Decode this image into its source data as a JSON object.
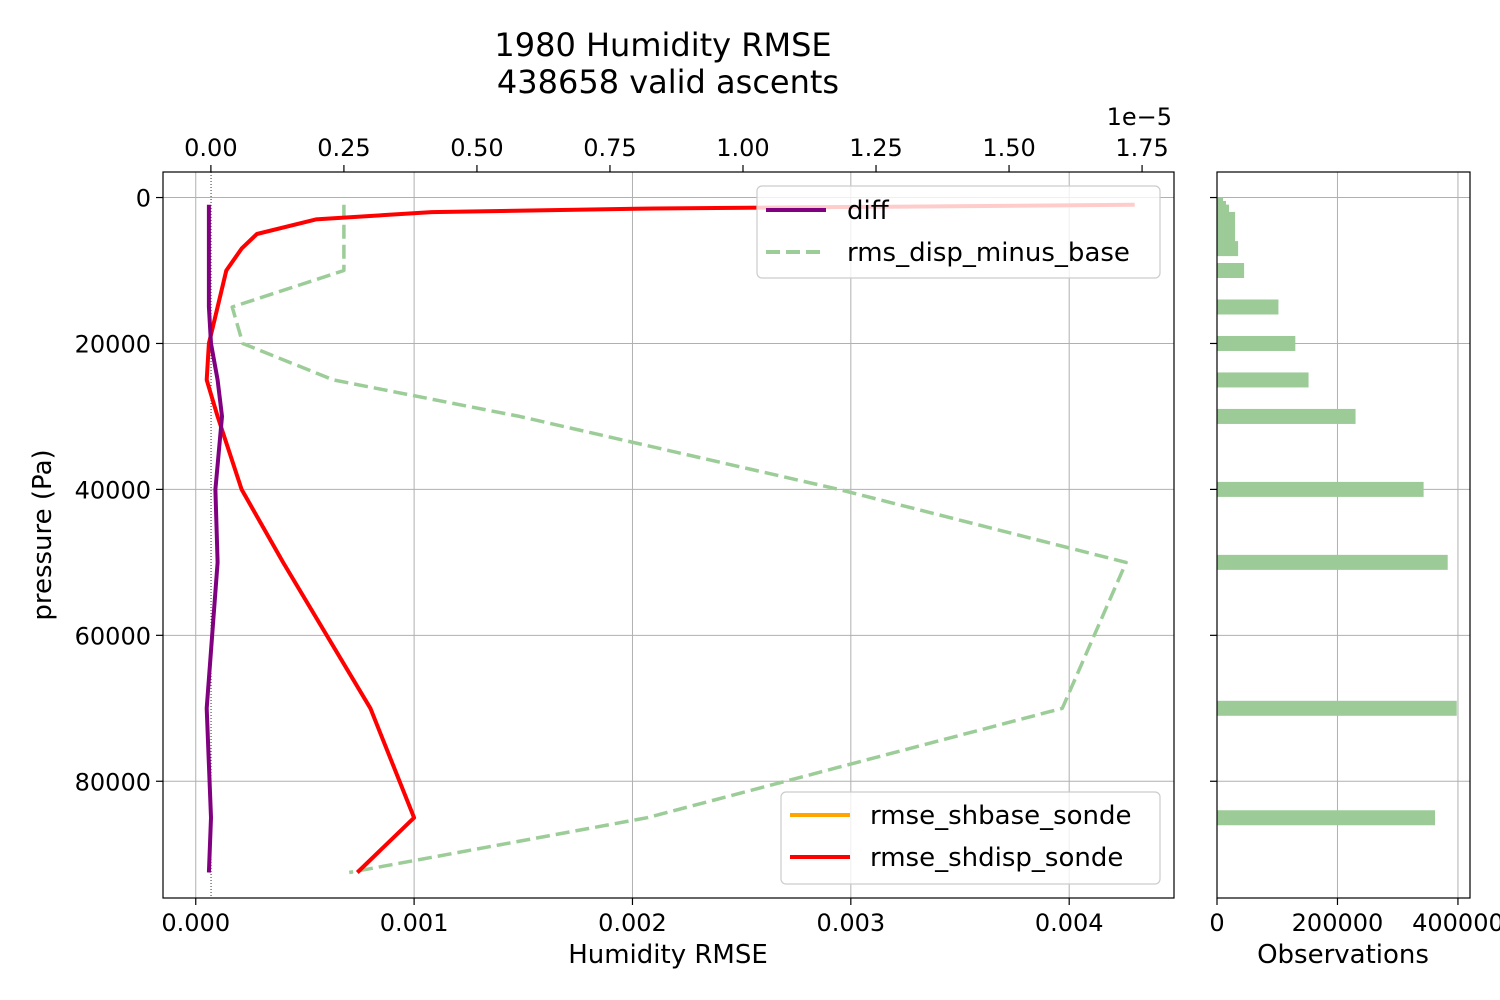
{
  "chart_data": {
    "type": "line",
    "title": "1980 Humidity RMSE",
    "subtitle": "438658 valid ascents",
    "main": {
      "xlabel": "Humidity RMSE",
      "ylabel": "pressure (Pa)",
      "xlim": [
        -0.00015,
        0.00448
      ],
      "ylim": [
        96000,
        -3500
      ],
      "x_ticks": [
        0.0,
        0.001,
        0.002,
        0.003,
        0.004
      ],
      "x_tick_labels": [
        "0.000",
        "0.001",
        "0.002",
        "0.003",
        "0.004"
      ],
      "y_ticks": [
        0,
        20000,
        40000,
        60000,
        80000
      ],
      "y_tick_labels": [
        "0",
        "20000",
        "40000",
        "60000",
        "80000"
      ],
      "grid": true,
      "zero_line_x": 7e-05,
      "top_axis": {
        "xlim": [
          -9e-07,
          1.81e-05
        ],
        "ticks": [
          0.0,
          2.5e-06,
          5e-06,
          7.5e-06,
          1e-05,
          1.25e-05,
          1.5e-05,
          1.75e-05
        ],
        "tick_labels": [
          "0.00",
          "0.25",
          "0.50",
          "0.75",
          "1.00",
          "1.25",
          "1.50",
          "1.75"
        ],
        "offset_label": "1e−5"
      },
      "series": [
        {
          "name": "rms_disp_minus_base",
          "axis": "top",
          "color": "#9ccd98",
          "style": "dashed",
          "points": [
            [
              2.5e-06,
              1000
            ],
            [
              2.5e-06,
              2000
            ],
            [
              2.5e-06,
              3000
            ],
            [
              2.5e-06,
              5000
            ],
            [
              2.5e-06,
              7000
            ],
            [
              2.5e-06,
              10000
            ],
            [
              4e-07,
              15000
            ],
            [
              6e-07,
              20000
            ],
            [
              2.3e-06,
              25000
            ],
            [
              5.8e-06,
              30000
            ],
            [
              1.18e-05,
              40000
            ],
            [
              1.72e-05,
              50000
            ],
            [
              1.6e-05,
              70000
            ],
            [
              8.2e-06,
              85000
            ],
            [
              2.6e-06,
              92500
            ]
          ]
        },
        {
          "name": "rmse_shdisp_sonde",
          "axis": "bottom",
          "color": "#ff0000",
          "style": "solid",
          "points": [
            [
              0.0043,
              1000
            ],
            [
              0.0021,
              1500
            ],
            [
              0.00108,
              2000
            ],
            [
              0.00055,
              3000
            ],
            [
              0.00028,
              5000
            ],
            [
              0.00021,
              7000
            ],
            [
              0.00014,
              10000
            ],
            [
              0.0001,
              15000
            ],
            [
              6e-05,
              20000
            ],
            [
              5e-05,
              25000
            ],
            [
              0.0001,
              30000
            ],
            [
              0.00021,
              40000
            ],
            [
              0.0004,
              50000
            ],
            [
              0.0008,
              70000
            ],
            [
              0.001,
              85000
            ],
            [
              0.00074,
              92500
            ]
          ]
        },
        {
          "name": "diff",
          "axis": "bottom",
          "color": "#800080",
          "style": "solid",
          "points": [
            [
              6e-05,
              1000
            ],
            [
              6e-05,
              2000
            ],
            [
              6e-05,
              3000
            ],
            [
              6e-05,
              5000
            ],
            [
              6e-05,
              7000
            ],
            [
              6e-05,
              10000
            ],
            [
              6e-05,
              15000
            ],
            [
              7e-05,
              20000
            ],
            [
              0.0001,
              25000
            ],
            [
              0.00012,
              30000
            ],
            [
              9e-05,
              40000
            ],
            [
              0.0001,
              50000
            ],
            [
              5e-05,
              70000
            ],
            [
              7e-05,
              85000
            ],
            [
              6e-05,
              92500
            ]
          ]
        },
        {
          "name": "rmse_shbase_sonde",
          "axis": "bottom",
          "color": "#ffa500",
          "style": "solid",
          "points": []
        }
      ],
      "legend_upper": {
        "placement": "top-right",
        "entries": [
          {
            "label": "diff",
            "color": "#800080",
            "style": "solid"
          },
          {
            "label": "rms_disp_minus_base",
            "color": "#9ccd98",
            "style": "dashed"
          }
        ]
      },
      "legend_lower": {
        "placement": "bottom-right",
        "entries": [
          {
            "label": "rmse_shbase_sonde",
            "color": "#ffa500",
            "style": "solid"
          },
          {
            "label": "rmse_shdisp_sonde",
            "color": "#ff0000",
            "style": "solid"
          }
        ]
      }
    },
    "side": {
      "type": "bar",
      "xlabel": "Observations",
      "xlim": [
        0,
        420000
      ],
      "x_ticks": [
        0,
        200000,
        400000
      ],
      "x_tick_labels": [
        "0",
        "200000",
        "400000"
      ],
      "grid": true,
      "color": "#9ccb98",
      "bars": [
        {
          "pressure": 1000,
          "value": 10000
        },
        {
          "pressure": 1500,
          "value": 15000
        },
        {
          "pressure": 2000,
          "value": 20000
        },
        {
          "pressure": 3000,
          "value": 30000
        },
        {
          "pressure": 5000,
          "value": 30000
        },
        {
          "pressure": 7000,
          "value": 35000
        },
        {
          "pressure": 10000,
          "value": 45000
        },
        {
          "pressure": 15000,
          "value": 102000
        },
        {
          "pressure": 20000,
          "value": 130000
        },
        {
          "pressure": 25000,
          "value": 152000
        },
        {
          "pressure": 30000,
          "value": 230000
        },
        {
          "pressure": 40000,
          "value": 343000
        },
        {
          "pressure": 50000,
          "value": 383000
        },
        {
          "pressure": 70000,
          "value": 398000
        },
        {
          "pressure": 85000,
          "value": 362000
        }
      ]
    }
  }
}
